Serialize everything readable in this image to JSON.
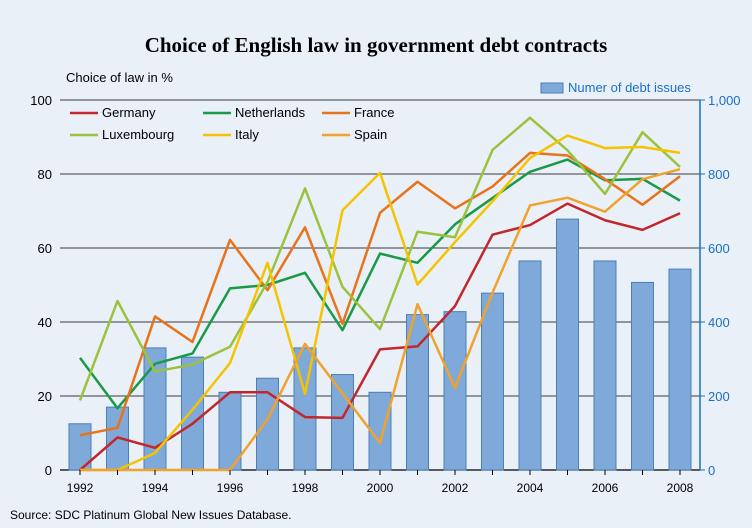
{
  "chart_data": {
    "type": "bar",
    "title": "Choice of English law in government debt contracts",
    "ylabel_left": "Choice of law in %",
    "ylabel_right": "Numer of debt issues",
    "source": "Source: SDC Platinum Global New Issues Database.",
    "x": [
      1992,
      1993,
      1994,
      1995,
      1996,
      1997,
      1998,
      1999,
      2000,
      2001,
      2002,
      2003,
      2004,
      2005,
      2006,
      2007,
      2008
    ],
    "x_tick_labels": [
      "1992",
      "1994",
      "1996",
      "1998",
      "2000",
      "2002",
      "2004",
      "2006",
      "2008"
    ],
    "x_tick_values": [
      1992,
      1994,
      1996,
      1998,
      2000,
      2002,
      2004,
      2006,
      2008
    ],
    "ylim_left": [
      0,
      100
    ],
    "ylim_right": [
      0,
      1000
    ],
    "left_ticks": [
      "0",
      "20",
      "40",
      "60",
      "80",
      "100"
    ],
    "right_ticks": [
      "0",
      "200",
      "400",
      "600",
      "800",
      "1,000"
    ],
    "grid": true,
    "legend_position": "top-left",
    "bars": {
      "name": "Numer of debt issues",
      "color": "#7fa9d8",
      "values": [
        125,
        170,
        330,
        305,
        210,
        248,
        330,
        258,
        210,
        420,
        428,
        478,
        565,
        678,
        565,
        507,
        543
      ]
    },
    "series": [
      {
        "name": "Germany",
        "color": "#c1272d",
        "values": [
          0,
          8.8,
          6,
          12.5,
          21,
          21,
          14.3,
          14.1,
          32.6,
          33.4,
          44.3,
          63.6,
          66.2,
          72,
          67.5,
          64.9,
          69.4
        ]
      },
      {
        "name": "Netherlands",
        "color": "#1a9a48",
        "values": [
          30.3,
          16.7,
          28.7,
          31.5,
          49.1,
          50,
          53.3,
          37.8,
          58.5,
          56,
          66.4,
          73.5,
          80.6,
          83.9,
          78.3,
          78.7,
          72.8
        ]
      },
      {
        "name": "France",
        "color": "#e8731a",
        "values": [
          9.4,
          11.4,
          41.5,
          34.6,
          62.2,
          48.6,
          65.6,
          39.5,
          69.5,
          77.9,
          70.7,
          76.6,
          85.7,
          85,
          78.6,
          71.7,
          79.4
        ]
      },
      {
        "name": "Luxembourg",
        "color": "#9bc23c",
        "values": [
          18.8,
          45.7,
          26.6,
          28.5,
          33.3,
          50.8,
          76.1,
          49.5,
          38.1,
          64.4,
          62.9,
          86.5,
          95.2,
          86.4,
          74.6,
          91.3,
          81.9
        ]
      },
      {
        "name": "Italy",
        "color": "#f5c400",
        "values": [
          0,
          0,
          4.6,
          16.3,
          28.9,
          56,
          20.6,
          70.2,
          80.3,
          50.1,
          61.6,
          72.6,
          84.3,
          90.4,
          87,
          87.3,
          85.7
        ]
      },
      {
        "name": "Spain",
        "color": "#f0a22c",
        "values": [
          0,
          0,
          0,
          0,
          0,
          13.7,
          34.1,
          20.7,
          7.3,
          44.8,
          22.2,
          47.9,
          71.5,
          73.6,
          69.8,
          78.6,
          81.3
        ]
      }
    ]
  }
}
